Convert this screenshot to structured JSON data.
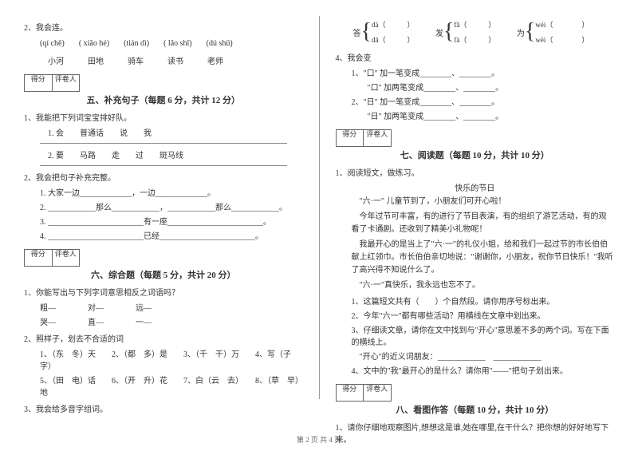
{
  "left": {
    "q2": "2、我会连。",
    "pinyin": [
      "(qí chē)",
      "( xiǎo hé)",
      "(tián dì)",
      "( lǎo shī)",
      "(dú shū)"
    ],
    "hanzi": [
      "小河",
      "田地",
      "骑车",
      "读书",
      "老师"
    ],
    "score_a": "得分",
    "score_b": "评卷人",
    "sec5": "五、补充句子（每题 6 分，共计 12 分）",
    "s5_q1": "1、我能把下列词宝宝排好队。",
    "s5_1_1": "1. 会　　普通话　　说　　我",
    "s5_1_2": "2. 要　　马路　　走　　过　　斑马线",
    "s5_q2": "2、我会把句子补充完整。",
    "s5_2_1": "1. 大家一边_____________，一边_____________。",
    "s5_2_2": "2. ____________那么____________，____________那么____________。",
    "s5_2_3": "3. ________________________有一座________________________。",
    "s5_2_4": "4. ________________________已经________________________。",
    "sec6": "六、综合题（每题 5 分，共计 20 分）",
    "s6_q1": "1、你能写出与下列字词意思相反之词语吗？",
    "pairs": [
      [
        "粗—",
        "对—",
        "远—"
      ],
      [
        "哭—",
        "直—",
        "一—"
      ]
    ],
    "s6_q2": "2、照样子，划去不合适的词",
    "s6_2_row1": "1、（东　冬）天　　2、（都　多）是　　3、（千　干）万　　4、写（子　字）",
    "s6_2_row2": "5、（田　电）话　　6、（开　升）花　　7、白（云　去）　　8、（草　早）地",
    "s6_q3": "3、我会给多音字组词。"
  },
  "right": {
    "brace_labels": [
      "答",
      "发",
      "为"
    ],
    "brace_items": [
      [
        "dá（　　　）",
        "dā（　　　）"
      ],
      [
        "fā（　　　）",
        "fà（　　　）"
      ],
      [
        "wéi（　　　　）",
        "wèi（　　　　）"
      ]
    ],
    "s_q4": "4、我会变",
    "s4_1": "1、\"口\" 加一笔变成________、________。",
    "s4_2": "　　\"口\" 加两笔变成________、________。",
    "s4_3": "2、\"日\" 加一笔变成________、________。",
    "s4_4": "　　\"日\" 加两笔变成________、________。",
    "score_a": "得分",
    "score_b": "评卷人",
    "sec7": "七、阅读题（每题 10 分，共计 10 分）",
    "s7_q1": "1、阅读短文，做练习。",
    "s7_title": "快乐的节日",
    "s7_p1": "\"六·一\" 儿童节到了，小朋友们可开心啦！",
    "s7_p2": "今年过节可丰富，有的进行了节目表演，有的组织了游艺活动，有的观看了卡通剧。还收到了精美小礼物呢！",
    "s7_p3": "我最开心的是当上了\"六·一\"的礼仪小姐，给和我们一起过节的市长伯伯献上红领巾。市长伯伯亲切地说：\"谢谢你，小朋友，祝你节日快乐！\"我听了高兴得不知说什么了。",
    "s7_p4": "\"六·一\"真快乐，我永远也忘不了。",
    "s7_qq1": "1、这篇短文共有（　　）个自然段。请你用序号标出来。",
    "s7_qq2": "2、今年\"六一\"都有哪些活动？用横线在文章中划出来。",
    "s7_qq3": "3、仔细读文章，请你在文中找到与\"开心\"意思差不多的两个词。写在下面的横线上。",
    "s7_qq3b": "　\"开心\"的近义词朋友：____________　____________",
    "s7_qq4": "4、文中的\"我\"最开心的是什么？请你用\"——\"把句子划出来。",
    "sec8": "八、看图作答（每题 10 分，共计 10 分）",
    "s8_q1": "1、请你仔细地观察图片,想想这是谁,她在哪里,在干什么？把你想的好好地写下来。"
  },
  "footer": "第 2 页  共 4 页"
}
